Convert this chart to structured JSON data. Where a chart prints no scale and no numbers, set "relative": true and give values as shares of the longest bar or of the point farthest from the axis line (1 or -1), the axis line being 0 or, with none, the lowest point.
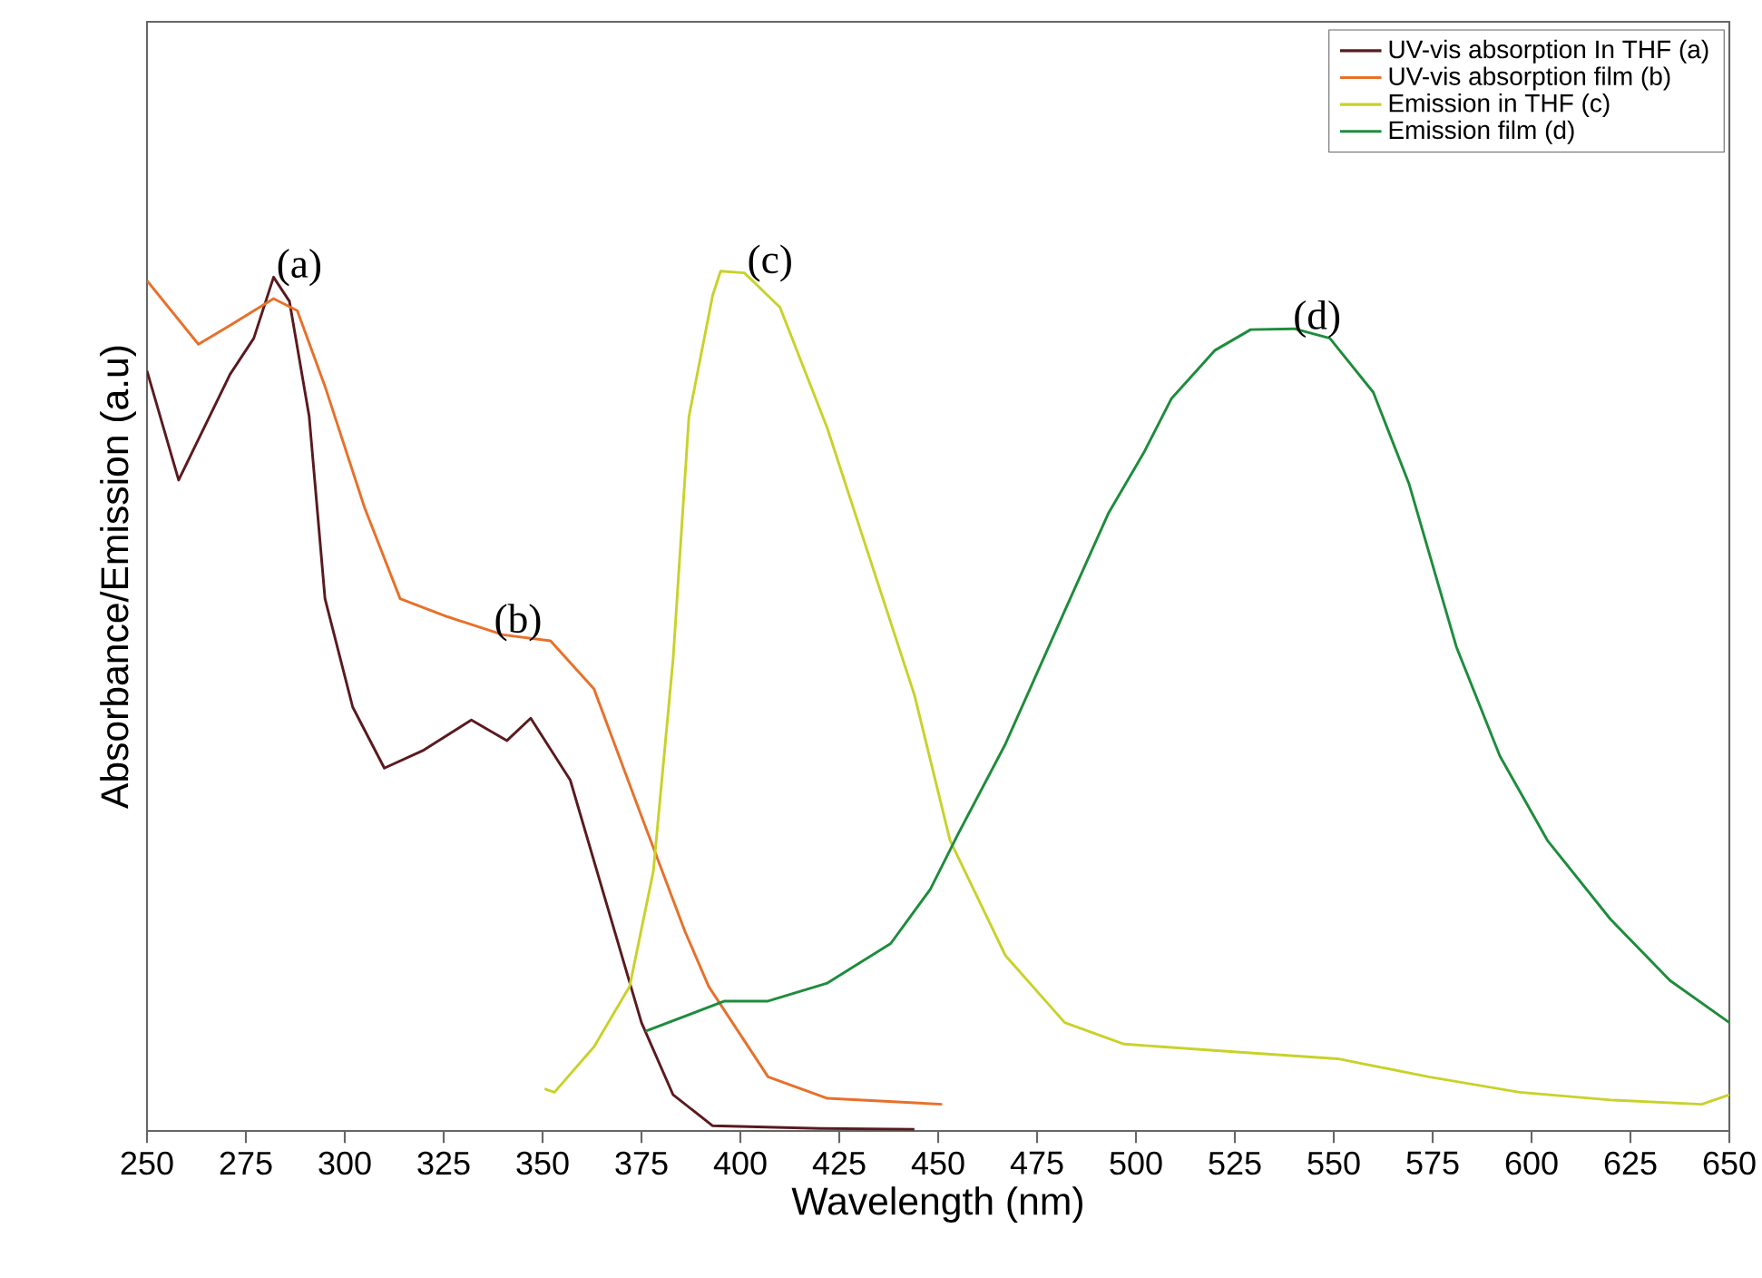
{
  "chart_data": {
    "type": "line",
    "relative": true,
    "xlabel": "Wavelength (nm)",
    "ylabel": "Absorbance/Emission (a.u)",
    "xlim": [
      250,
      650
    ],
    "xticks": [
      250,
      275,
      300,
      325,
      350,
      375,
      400,
      425,
      450,
      475,
      500,
      525,
      550,
      575,
      600,
      625,
      650
    ],
    "legend": "top right",
    "line_style": "solid",
    "marker": "none",
    "series": [
      {
        "name": "UV-vis absorption In THF (a)",
        "color": "#5a1a1e",
        "x": [
          250,
          258,
          271,
          277,
          282,
          286,
          291,
          295,
          302,
          310,
          320,
          332,
          341,
          347,
          357,
          366,
          375,
          383,
          393,
          420,
          444
        ],
        "values": [
          0.884,
          0.757,
          0.88,
          0.922,
          0.993,
          0.965,
          0.831,
          0.619,
          0.493,
          0.422,
          0.443,
          0.478,
          0.454,
          0.48,
          0.408,
          0.267,
          0.126,
          0.042,
          0.006,
          0.003,
          0.002
        ]
      },
      {
        "name": "UV-vis absorption film (b)",
        "color": "#e8702a",
        "x": [
          250,
          263,
          271,
          282,
          288,
          295,
          305,
          314,
          326,
          340,
          352,
          363,
          375,
          386,
          392,
          407,
          422,
          451
        ],
        "values": [
          0.989,
          0.915,
          0.937,
          0.968,
          0.954,
          0.866,
          0.725,
          0.619,
          0.598,
          0.577,
          0.57,
          0.514,
          0.366,
          0.232,
          0.168,
          0.063,
          0.038,
          0.031
        ]
      },
      {
        "name": "Emission in THF (c)",
        "color": "#c8d22a",
        "x": [
          350.5,
          353,
          363,
          372,
          378,
          383,
          387,
          393,
          395,
          401,
          410,
          422,
          431,
          444,
          453,
          467,
          482,
          497,
          528,
          551,
          574,
          597,
          620,
          643,
          650
        ],
        "values": [
          0.049,
          0.045,
          0.098,
          0.168,
          0.302,
          0.549,
          0.831,
          0.972,
          1.0,
          0.998,
          0.958,
          0.817,
          0.69,
          0.507,
          0.338,
          0.204,
          0.126,
          0.101,
          0.091,
          0.084,
          0.063,
          0.045,
          0.036,
          0.031,
          0.042
        ]
      },
      {
        "name": "Emission film (d)",
        "color": "#1e8c3c",
        "x": [
          376,
          396,
          407,
          422,
          438,
          448,
          455,
          467,
          482,
          493,
          502,
          509,
          520,
          529,
          540,
          549,
          560,
          569,
          581,
          592,
          604,
          620,
          635,
          650
        ],
        "values": [
          0.116,
          0.151,
          0.151,
          0.172,
          0.218,
          0.281,
          0.345,
          0.45,
          0.605,
          0.718,
          0.789,
          0.852,
          0.908,
          0.932,
          0.933,
          0.922,
          0.859,
          0.753,
          0.563,
          0.436,
          0.338,
          0.246,
          0.175,
          0.126
        ]
      }
    ],
    "annotations": [
      {
        "text": "(a)",
        "x": 282,
        "y": 0.993
      },
      {
        "text": "(b)",
        "x": 337,
        "y": 0.58
      },
      {
        "text": "(c)",
        "x": 401,
        "y": 0.998
      },
      {
        "text": "(d)",
        "x": 539,
        "y": 0.933
      }
    ]
  }
}
